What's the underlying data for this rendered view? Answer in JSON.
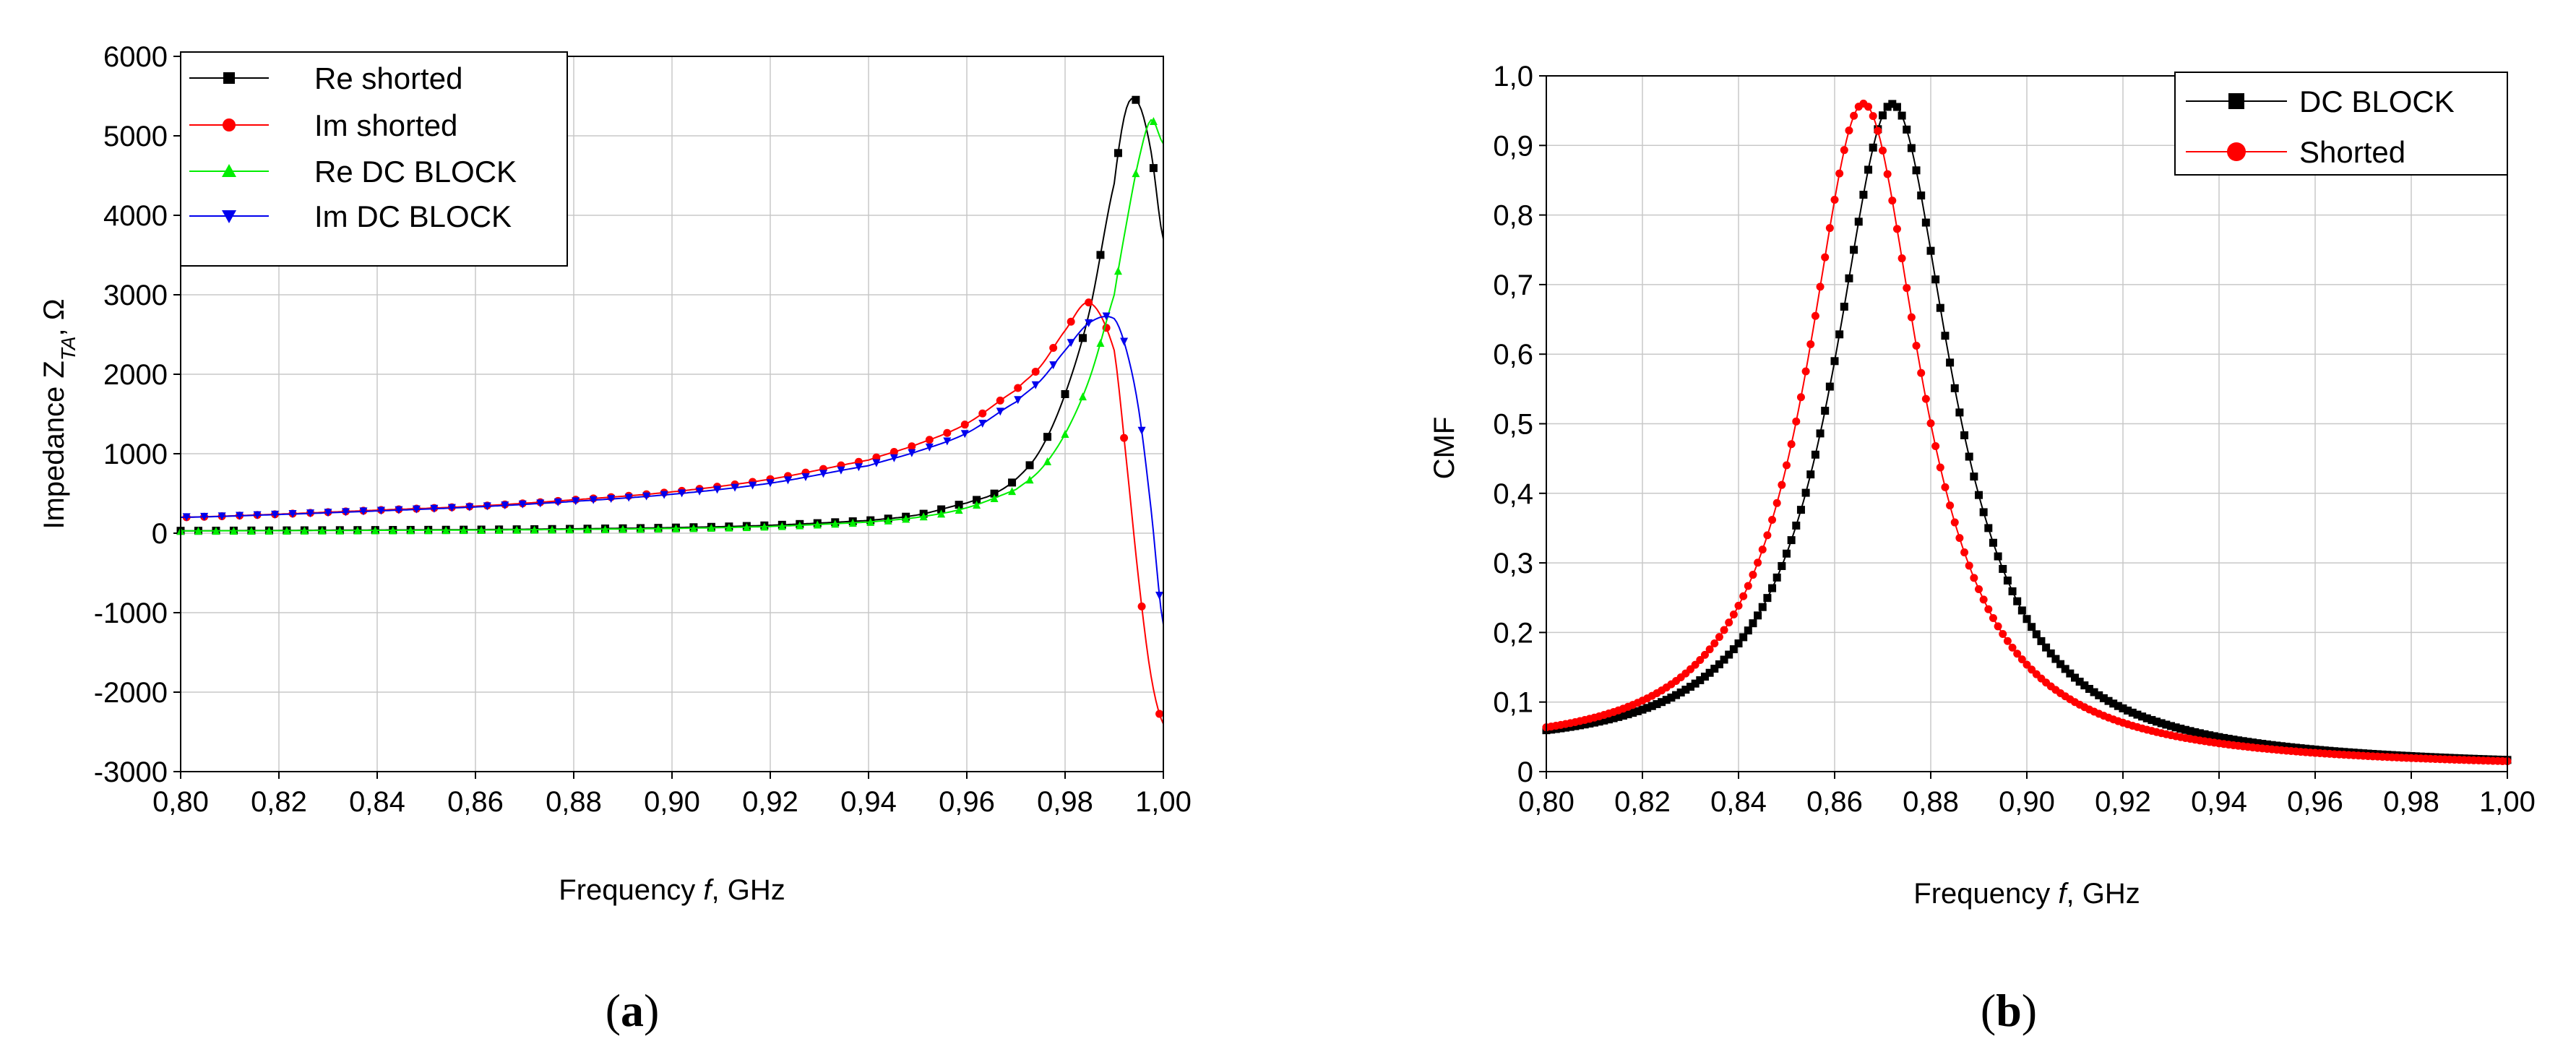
{
  "panels": [
    {
      "label_open": "(",
      "label_letter": "a",
      "label_close": ")"
    },
    {
      "label_open": "(",
      "label_letter": "b",
      "label_close": ")"
    }
  ],
  "chart_data": [
    {
      "type": "line",
      "title": "",
      "xlabel_prefix": "Frequency ",
      "xlabel_var": "f",
      "xlabel_suffix": ", GHz",
      "ylabel_prefix": "Impedance Z",
      "ylabel_sub": "TA",
      "ylabel_suffix": ", Ω",
      "xlim": [
        0.8,
        1.0
      ],
      "ylim": [
        -3000,
        6000
      ],
      "x_ticks": [
        0.8,
        0.82,
        0.84,
        0.86,
        0.88,
        0.9,
        0.92,
        0.94,
        0.96,
        0.98,
        1.0
      ],
      "x_tick_labels": [
        "0,80",
        "0,82",
        "0,84",
        "0,86",
        "0,88",
        "0,90",
        "0,92",
        "0,94",
        "0,96",
        "0,98",
        "1,00"
      ],
      "y_ticks": [
        -3000,
        -2000,
        -1000,
        0,
        1000,
        2000,
        3000,
        4000,
        5000,
        6000
      ],
      "y_tick_labels": [
        "-3000",
        "-2000",
        "-1000",
        "0",
        "1000",
        "2000",
        "3000",
        "4000",
        "5000",
        "6000"
      ],
      "grid": true,
      "legend_position": "top-left",
      "series": [
        {
          "name": "Re shorted",
          "color": "#000000",
          "marker": "square",
          "x": [
            0.8,
            0.82,
            0.84,
            0.86,
            0.88,
            0.9,
            0.92,
            0.94,
            0.95,
            0.96,
            0.965,
            0.97,
            0.975,
            0.98,
            0.985,
            0.99,
            0.9925,
            0.995,
            0.9975,
            1.0
          ],
          "y": [
            30,
            35,
            40,
            45,
            55,
            70,
            100,
            160,
            230,
            380,
            480,
            680,
            1050,
            1750,
            2800,
            4400,
            5350,
            5400,
            4800,
            3700
          ]
        },
        {
          "name": "Im shorted",
          "color": "#ff0000",
          "marker": "circle",
          "x": [
            0.8,
            0.82,
            0.84,
            0.86,
            0.88,
            0.9,
            0.92,
            0.94,
            0.95,
            0.96,
            0.97,
            0.975,
            0.98,
            0.985,
            0.99,
            0.9925,
            0.995,
            0.9975,
            1.0
          ],
          "y": [
            200,
            240,
            290,
            340,
            420,
            520,
            680,
            920,
            1120,
            1380,
            1800,
            2100,
            2550,
            2900,
            2300,
            900,
            -600,
            -1800,
            -2400
          ]
        },
        {
          "name": "Re DC BLOCK",
          "color": "#00ee00",
          "marker": "triangle-up",
          "x": [
            0.8,
            0.82,
            0.84,
            0.86,
            0.88,
            0.9,
            0.92,
            0.94,
            0.95,
            0.96,
            0.97,
            0.975,
            0.98,
            0.985,
            0.99,
            0.9925,
            0.995,
            0.9975,
            1.0
          ],
          "y": [
            30,
            32,
            36,
            40,
            48,
            60,
            85,
            140,
            200,
            320,
            550,
            800,
            1250,
            1950,
            3000,
            3900,
            4700,
            5200,
            4900
          ]
        },
        {
          "name": "Im DC BLOCK",
          "color": "#0000ee",
          "marker": "triangle-down",
          "x": [
            0.8,
            0.82,
            0.84,
            0.86,
            0.88,
            0.9,
            0.92,
            0.94,
            0.95,
            0.96,
            0.97,
            0.975,
            0.98,
            0.985,
            0.99,
            0.9925,
            0.995,
            0.9975,
            1.0
          ],
          "y": [
            200,
            235,
            280,
            330,
            400,
            490,
            630,
            850,
            1030,
            1260,
            1650,
            1920,
            2300,
            2650,
            2700,
            2300,
            1550,
            300,
            -1150
          ]
        }
      ]
    },
    {
      "type": "line",
      "title": "",
      "xlabel_prefix": "Frequency ",
      "xlabel_var": "f",
      "xlabel_suffix": ", GHz",
      "ylabel": "CMF",
      "xlim": [
        0.8,
        1.0
      ],
      "ylim": [
        0,
        1.0
      ],
      "x_ticks": [
        0.8,
        0.82,
        0.84,
        0.86,
        0.88,
        0.9,
        0.92,
        0.94,
        0.96,
        0.98,
        1.0
      ],
      "x_tick_labels": [
        "0,80",
        "0,82",
        "0,84",
        "0,86",
        "0,88",
        "0,90",
        "0,92",
        "0,94",
        "0,96",
        "0,98",
        "1,00"
      ],
      "y_ticks": [
        0,
        0.1,
        0.2,
        0.3,
        0.4,
        0.5,
        0.6,
        0.7,
        0.8,
        0.9,
        1.0
      ],
      "y_tick_labels": [
        "0",
        "0,1",
        "0,2",
        "0,3",
        "0,4",
        "0,5",
        "0,6",
        "0,7",
        "0,8",
        "0,9",
        "1,0"
      ],
      "grid": true,
      "legend_position": "top-right",
      "series": [
        {
          "name": "DC BLOCK",
          "color": "#000000",
          "marker": "square",
          "peak_x": 0.872,
          "peak_y": 0.95,
          "halfwidth": 0.015,
          "baseline": 0.0
        },
        {
          "name": "Shorted",
          "color": "#ff0000",
          "marker": "circle",
          "peak_x": 0.866,
          "peak_y": 0.95,
          "halfwidth": 0.0145,
          "baseline": 0.0
        }
      ]
    }
  ]
}
